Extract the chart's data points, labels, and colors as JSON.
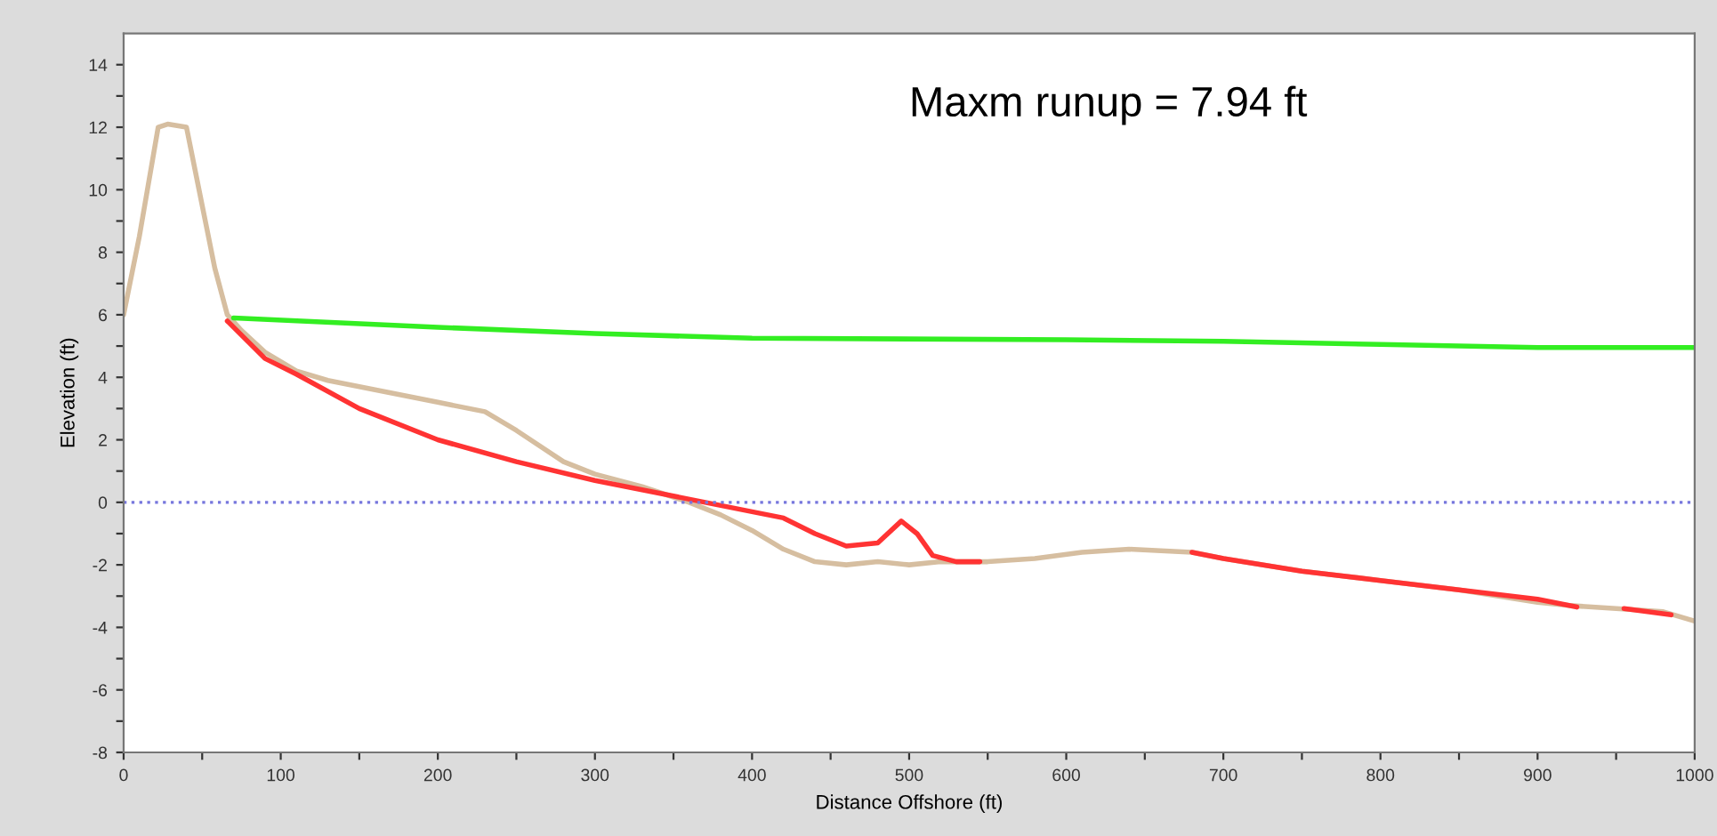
{
  "chart_data": {
    "type": "line",
    "xlabel": "Distance Offshore (ft)",
    "ylabel": "Elevation (ft)",
    "xlim": [
      0,
      1000
    ],
    "ylim": [
      -8,
      15
    ],
    "xticks": [
      0,
      {
        "value": 50,
        "label": null
      },
      100,
      {
        "value": 150,
        "label": null
      },
      200,
      {
        "value": 250,
        "label": null
      },
      300,
      {
        "value": 350,
        "label": null
      },
      400,
      {
        "value": 450,
        "label": null
      },
      500,
      {
        "value": 550,
        "label": null
      },
      600,
      {
        "value": 650,
        "label": null
      },
      700,
      {
        "value": 750,
        "label": null
      },
      800,
      {
        "value": 850,
        "label": null
      },
      900,
      {
        "value": 950,
        "label": null
      },
      1000
    ],
    "yticks": [
      -8,
      {
        "value": -7,
        "label": null
      },
      -6,
      {
        "value": -5,
        "label": null
      },
      -4,
      {
        "value": -3,
        "label": null
      },
      -2,
      {
        "value": -1,
        "label": null
      },
      0,
      {
        "value": 1,
        "label": null
      },
      2,
      {
        "value": 3,
        "label": null
      },
      4,
      {
        "value": 5,
        "label": null
      },
      6,
      {
        "value": 7,
        "label": null
      },
      8,
      {
        "value": 9,
        "label": null
      },
      10,
      {
        "value": 11,
        "label": null
      },
      12,
      {
        "value": 13,
        "label": null
      },
      14
    ],
    "grid": false,
    "legend": false,
    "ref_lines": [
      {
        "axis": "y",
        "value": 0,
        "color": "#7777dd",
        "line_style": "dotted"
      }
    ],
    "annotations": [
      "Maxm runup = 7.94 ft"
    ],
    "series": [
      {
        "color": "#d6bea0",
        "x": [
          0,
          10,
          22,
          28,
          40,
          48,
          58,
          66,
          75,
          90,
          110,
          130,
          160,
          200,
          230,
          250,
          280,
          300,
          330,
          360,
          380,
          400,
          420,
          440,
          460,
          480,
          500,
          520,
          550,
          580,
          610,
          640,
          680,
          700,
          750,
          800,
          850,
          900,
          920,
          950,
          980,
          1000
        ],
        "values": [
          6,
          8.5,
          12,
          12.1,
          12,
          10,
          7.5,
          6,
          5.5,
          4.8,
          4.2,
          3.9,
          3.6,
          3.2,
          2.9,
          2.3,
          1.3,
          0.9,
          0.5,
          0,
          -0.4,
          -0.9,
          -1.5,
          -1.9,
          -2,
          -1.9,
          -2,
          -1.9,
          -1.9,
          -1.8,
          -1.6,
          -1.5,
          -1.6,
          -1.8,
          -2.2,
          -2.5,
          -2.8,
          -3.2,
          -3.3,
          -3.4,
          -3.5,
          -3.8
        ]
      },
      {
        "color": "#ff3333",
        "x": [
          66,
          90,
          110,
          150,
          200,
          250,
          300,
          350,
          400,
          420,
          440,
          460,
          480,
          495,
          505,
          515,
          530,
          545,
          600,
          680,
          700,
          750,
          800,
          850,
          900,
          925,
          940,
          955,
          985
        ],
        "values": [
          5.8,
          4.6,
          4.1,
          3,
          2,
          1.3,
          0.7,
          0.2,
          -0.3,
          -0.5,
          -1,
          -1.4,
          -1.3,
          -0.6,
          -1,
          -1.7,
          -1.9,
          -1.9,
          null,
          -1.6,
          -1.8,
          -2.2,
          -2.5,
          -2.8,
          -3.1,
          -3.35,
          null,
          -3.4,
          -3.6
        ]
      },
      {
        "color": "#33ee22",
        "x": [
          70,
          200,
          300,
          400,
          600,
          700,
          800,
          900,
          1000
        ],
        "values": [
          5.9,
          5.6,
          5.4,
          5.25,
          5.2,
          5.15,
          5.05,
          4.95,
          4.95
        ]
      }
    ]
  }
}
